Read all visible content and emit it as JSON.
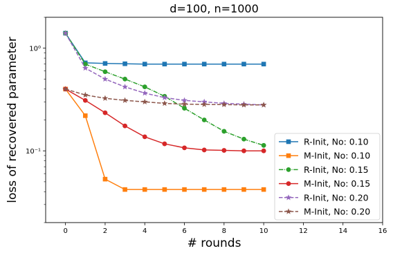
{
  "chart_data": {
    "type": "line",
    "title": "d=100, n=1000",
    "xlabel": "# rounds",
    "ylabel": "loss of recovered parameter",
    "xlim": [
      -1,
      16
    ],
    "ylim": [
      0.02,
      2.0
    ],
    "yscale": "log",
    "grid": false,
    "legend_position": "bottom-right",
    "x_ticks": [
      0,
      2,
      4,
      6,
      8,
      10,
      12,
      14,
      16
    ],
    "x_tick_labels": [
      "0",
      "2",
      "4",
      "6",
      "8",
      "10",
      "12",
      "14",
      "16"
    ],
    "y_ticks": [
      1.0,
      0.1
    ],
    "y_tick_labels": [
      "10⁰",
      "10⁻¹"
    ],
    "x": [
      0,
      1,
      2,
      3,
      4,
      5,
      6,
      7,
      8,
      9,
      10
    ],
    "series": [
      {
        "name": "R-Init, No: 0.10",
        "color": "#1f77b4",
        "marker": "square",
        "linestyle": "solid",
        "values": [
          1.4,
          0.72,
          0.71,
          0.705,
          0.7,
          0.7,
          0.7,
          0.7,
          0.7,
          0.7,
          0.7
        ]
      },
      {
        "name": "M-Init, No: 0.10",
        "color": "#ff7f0e",
        "marker": "square",
        "linestyle": "solid",
        "values": [
          0.4,
          0.22,
          0.053,
          0.042,
          0.042,
          0.042,
          0.042,
          0.042,
          0.042,
          0.042,
          0.042
        ]
      },
      {
        "name": "R-Init, No: 0.15",
        "color": "#2ca02c",
        "marker": "circle",
        "linestyle": "dashdot",
        "values": [
          1.4,
          0.7,
          0.59,
          0.5,
          0.42,
          0.34,
          0.26,
          0.2,
          0.155,
          0.13,
          0.113
        ]
      },
      {
        "name": "M-Init, No: 0.15",
        "color": "#d62728",
        "marker": "circle",
        "linestyle": "solid",
        "values": [
          0.4,
          0.31,
          0.235,
          0.175,
          0.137,
          0.117,
          0.107,
          0.102,
          0.101,
          0.1,
          0.1
        ]
      },
      {
        "name": "R-Init, No: 0.20",
        "color": "#9467bd",
        "marker": "star",
        "linestyle": "dashed",
        "values": [
          1.4,
          0.64,
          0.5,
          0.42,
          0.365,
          0.33,
          0.31,
          0.3,
          0.29,
          0.285,
          0.28
        ]
      },
      {
        "name": "M-Init, No: 0.20",
        "color": "#8c564b",
        "marker": "star",
        "linestyle": "dashed",
        "values": [
          0.4,
          0.35,
          0.325,
          0.31,
          0.3,
          0.29,
          0.285,
          0.283,
          0.282,
          0.28,
          0.28
        ]
      }
    ]
  }
}
